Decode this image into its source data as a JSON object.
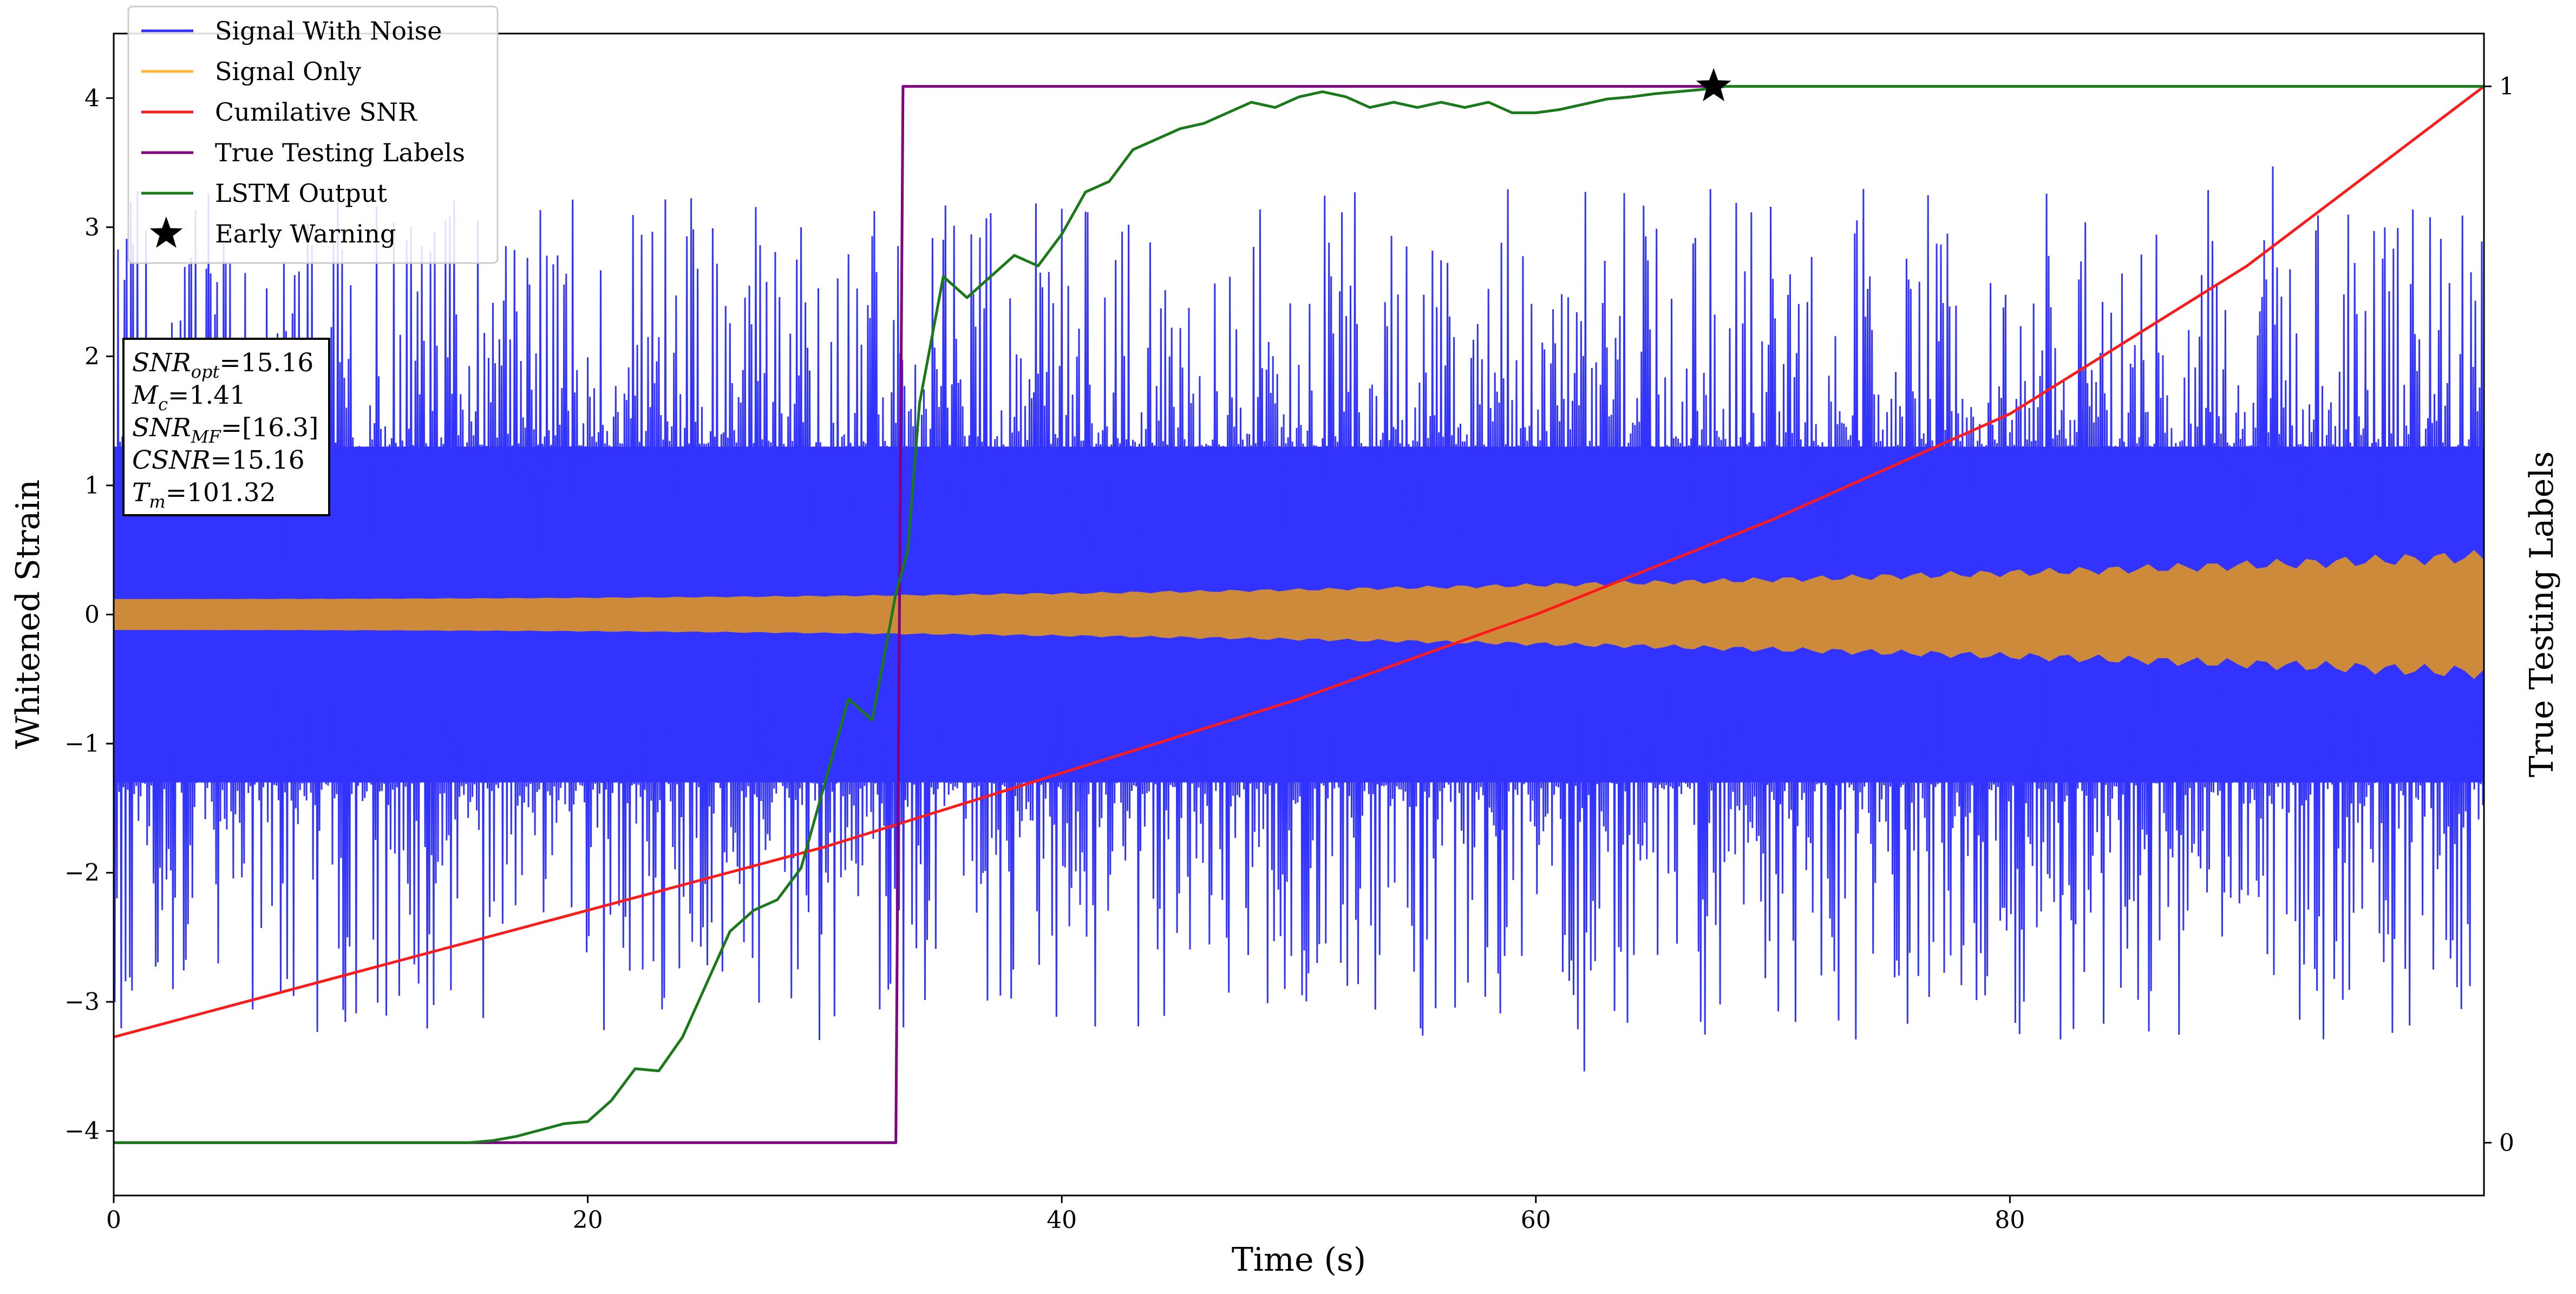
{
  "chart_data": {
    "type": "line",
    "xlabel": "Time (s)",
    "ylabel": "Whitened Strain",
    "ylabel_right": "True Testing Labels",
    "xlim": [
      0,
      100
    ],
    "ylim": [
      -4.5,
      4.5
    ],
    "ylim_right": [
      -0.05,
      1.05
    ],
    "x_ticks": [
      0,
      20,
      40,
      60,
      80
    ],
    "y_ticks": [
      -4,
      -3,
      -2,
      -1,
      0,
      1,
      2,
      3,
      4
    ],
    "y_ticks_right": [
      0,
      1
    ],
    "legend_position": "upper-left",
    "legend": [
      {
        "label": "Signal With Noise",
        "color": "#3333ff",
        "marker": "line"
      },
      {
        "label": "Signal Only",
        "color": "#ffb733",
        "marker": "line"
      },
      {
        "label": "Cumilative SNR",
        "color": "#ff1a1a",
        "marker": "line"
      },
      {
        "label": "True Testing Labels",
        "color": "#800080",
        "marker": "line"
      },
      {
        "label": "LSTM Output",
        "color": "#1a7a1a",
        "marker": "line"
      },
      {
        "label": "Early Warning",
        "color": "#000000",
        "marker": "star"
      }
    ],
    "annotation": [
      {
        "name": "SNR",
        "sub": "opt",
        "value": "=15.16"
      },
      {
        "name": "M",
        "sub": "c",
        "value": "=1.41"
      },
      {
        "name": "SNR",
        "sub": "MF",
        "value": "=[16.3]"
      },
      {
        "name": "CSNR",
        "sub": "",
        "value": "=15.16"
      },
      {
        "name": "T",
        "sub": "m",
        "value": "=101.32"
      }
    ],
    "series": [
      {
        "name": "Signal With Noise",
        "axis": "left",
        "kind": "noise_band",
        "core_amplitude": 1.3,
        "peak_amplitude": 3.3,
        "color": "#3333ff"
      },
      {
        "name": "Signal Only",
        "axis": "left",
        "kind": "chirp_band",
        "amplitude_start": 0.12,
        "amplitude_end": 0.45,
        "color": "#cc8a3a"
      },
      {
        "name": "Cumilative SNR",
        "axis": "right",
        "color": "#ff1a1a",
        "x": [
          0,
          10,
          20,
          30,
          40,
          50,
          60,
          70,
          80,
          90,
          100
        ],
        "y": [
          0.1,
          0.16,
          0.22,
          0.28,
          0.35,
          0.42,
          0.5,
          0.59,
          0.69,
          0.83,
          1.0
        ]
      },
      {
        "name": "True Testing Labels",
        "axis": "right",
        "color": "#800080",
        "x": [
          0,
          33.0,
          33.3,
          67.5
        ],
        "y": [
          0,
          0,
          1,
          1
        ]
      },
      {
        "name": "LSTM Output",
        "axis": "right",
        "color": "#1a7a1a",
        "x": [
          0,
          15,
          16,
          17,
          18,
          19,
          20,
          21,
          22,
          23,
          24,
          25,
          26,
          27,
          28,
          29,
          30,
          31,
          32,
          32.5,
          33,
          33.5,
          34,
          35,
          36,
          37,
          38,
          39,
          40,
          41,
          42,
          43,
          44,
          45,
          46,
          47,
          48,
          49,
          50,
          51,
          52,
          53,
          54,
          55,
          56,
          57,
          58,
          59,
          60,
          61,
          62,
          63,
          64,
          65,
          66,
          67,
          68,
          70,
          75,
          80,
          85,
          90,
          95,
          100
        ],
        "y": [
          0,
          0,
          0.002,
          0.006,
          0.012,
          0.018,
          0.02,
          0.04,
          0.07,
          0.068,
          0.1,
          0.15,
          0.2,
          0.22,
          0.23,
          0.26,
          0.34,
          0.42,
          0.4,
          0.46,
          0.52,
          0.56,
          0.7,
          0.82,
          0.8,
          0.82,
          0.84,
          0.83,
          0.86,
          0.9,
          0.91,
          0.94,
          0.95,
          0.96,
          0.965,
          0.975,
          0.985,
          0.98,
          0.99,
          0.995,
          0.99,
          0.98,
          0.985,
          0.98,
          0.985,
          0.98,
          0.985,
          0.975,
          0.975,
          0.978,
          0.983,
          0.988,
          0.99,
          0.993,
          0.995,
          0.997,
          1.0,
          1.0,
          1.0,
          1.0,
          1.0,
          1.0,
          1.0,
          1.0
        ]
      },
      {
        "name": "Early Warning",
        "axis": "right",
        "kind": "marker",
        "color": "#000000",
        "x": [
          67.5
        ],
        "y": [
          1.0
        ]
      }
    ]
  }
}
